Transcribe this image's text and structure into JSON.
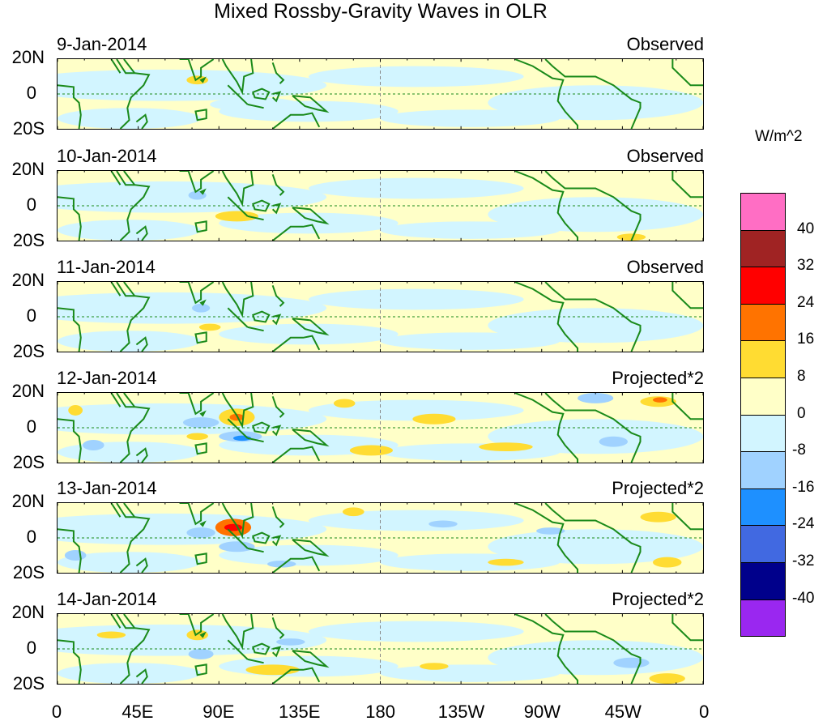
{
  "title": "Mixed Rossby-Gravity Waves in OLR",
  "units": "W/m^2",
  "panels": [
    {
      "date": "9-Jan-2014",
      "kind": "Observed"
    },
    {
      "date": "10-Jan-2014",
      "kind": "Observed"
    },
    {
      "date": "11-Jan-2014",
      "kind": "Observed"
    },
    {
      "date": "12-Jan-2014",
      "kind": "Projected*2"
    },
    {
      "date": "13-Jan-2014",
      "kind": "Projected*2"
    },
    {
      "date": "14-Jan-2014",
      "kind": "Projected*2"
    }
  ],
  "y_ticks": [
    "20N",
    "0",
    "20S"
  ],
  "x_ticks": [
    "0",
    "45E",
    "90E",
    "135E",
    "180",
    "135W",
    "90W",
    "45W",
    "0"
  ],
  "colorbar": {
    "labels": [
      "40",
      "32",
      "24",
      "16",
      "8",
      "0",
      "-8",
      "-16",
      "-24",
      "-32",
      "-40"
    ],
    "colors": [
      "#ff6ec4",
      "#a02323",
      "#ff0000",
      "#ff7300",
      "#ffdc32",
      "#ffffc8",
      "#d2f5ff",
      "#a0d2ff",
      "#1e90ff",
      "#4169e1",
      "#00008b",
      "#9a27f0"
    ]
  }
}
